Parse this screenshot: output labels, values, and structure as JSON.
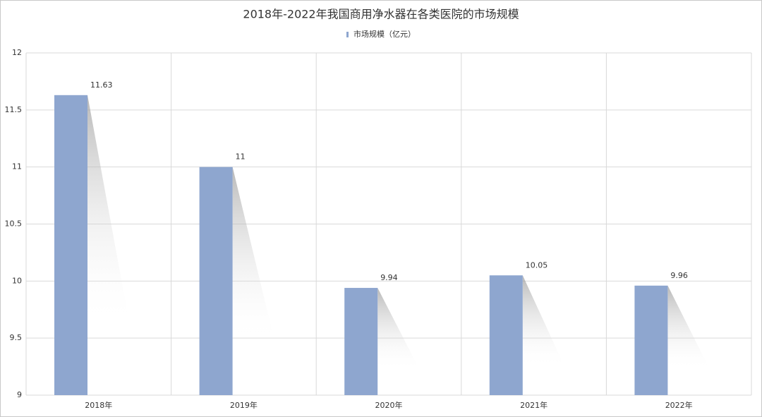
{
  "chart_data": {
    "type": "bar",
    "title": "2018年-2022年我国商用净水器在各类医院的市场规模",
    "categories": [
      "2018年",
      "2019年",
      "2020年",
      "2021年",
      "2022年"
    ],
    "series": [
      {
        "name": "市场规模（亿元）",
        "color": "#8ea6cf",
        "values": [
          11.63,
          11,
          9.94,
          10.05,
          9.96
        ]
      }
    ],
    "ylim": [
      9,
      12
    ],
    "yticks": [
      9,
      9.5,
      10,
      10.5,
      11,
      11.5,
      12
    ],
    "grid": true
  }
}
